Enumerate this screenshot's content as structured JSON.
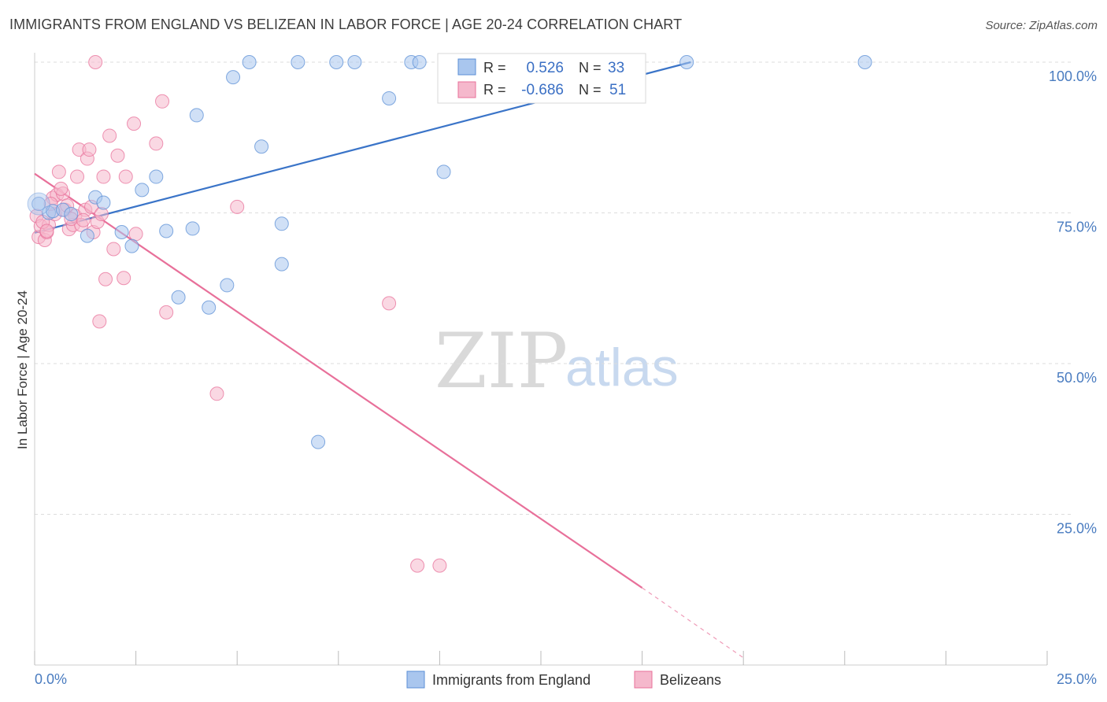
{
  "title": "IMMIGRANTS FROM ENGLAND VS BELIZEAN IN LABOR FORCE | AGE 20-24 CORRELATION CHART",
  "source": "Source: ZipAtlas.com",
  "watermark": {
    "part1": "ZIP",
    "part2": "atlas"
  },
  "colors": {
    "blue": "#5b8fd6",
    "blue_fill": "#a9c6ee",
    "pink": "#e8709a",
    "pink_fill": "#f5b8cc",
    "tick_text": "#4a7cc0",
    "grid": "#dddddd"
  },
  "legend_top": {
    "rows": [
      {
        "r_label": "R =",
        "r_value": "0.526",
        "n_label": "N =",
        "n_value": "33"
      },
      {
        "r_label": "R =",
        "r_value": "-0.686",
        "n_label": "N =",
        "n_value": "51"
      }
    ]
  },
  "legend_bottom": {
    "items": [
      "Immigrants from England",
      "Belizeans"
    ]
  },
  "chart_data": {
    "type": "scatter",
    "xlabel": "",
    "ylabel": "In Labor Force | Age 20-24",
    "xlim": [
      0,
      25
    ],
    "ylim": [
      0,
      105
    ],
    "x_tick_labels": [
      "0.0%",
      "25.0%"
    ],
    "y_tick_labels": [
      "100.0%",
      "75.0%",
      "50.0%",
      "25.0%"
    ],
    "y_ticks": [
      100,
      75,
      50,
      25
    ],
    "grid": true,
    "legend_placement": "bottom",
    "series": [
      {
        "name": "Immigrants from England",
        "R": 0.526,
        "N": 33,
        "trend": {
          "x": [
            0,
            16.2
          ],
          "y": [
            71.7,
            100.0
          ]
        },
        "points": [
          [
            0.1,
            76.5
          ],
          [
            0.35,
            75.0
          ],
          [
            0.45,
            75.3
          ],
          [
            0.7,
            75.5
          ],
          [
            0.9,
            74.8
          ],
          [
            1.3,
            71.2
          ],
          [
            1.5,
            77.6
          ],
          [
            1.7,
            76.7
          ],
          [
            2.15,
            71.8
          ],
          [
            2.4,
            69.5
          ],
          [
            2.65,
            78.8
          ],
          [
            3.0,
            81.0
          ],
          [
            3.25,
            72.0
          ],
          [
            3.55,
            61.0
          ],
          [
            3.9,
            72.4
          ],
          [
            4.0,
            91.2
          ],
          [
            4.3,
            59.3
          ],
          [
            4.75,
            63.0
          ],
          [
            4.9,
            97.5
          ],
          [
            5.3,
            100.0
          ],
          [
            5.6,
            86.0
          ],
          [
            6.1,
            66.5
          ],
          [
            6.1,
            73.2
          ],
          [
            6.5,
            100.0
          ],
          [
            7.0,
            37.0
          ],
          [
            7.45,
            100.0
          ],
          [
            7.9,
            100.0
          ],
          [
            8.75,
            94.0
          ],
          [
            9.3,
            100.0
          ],
          [
            9.5,
            100.0
          ],
          [
            10.1,
            81.8
          ],
          [
            16.1,
            100.0
          ],
          [
            20.5,
            100.0
          ]
        ]
      },
      {
        "name": "Belizeans",
        "R": -0.686,
        "N": 51,
        "trend": {
          "x": [
            0,
            15.0
          ],
          "y": [
            81.5,
            12.8
          ]
        },
        "trend_dashed": {
          "x": [
            15.0,
            17.5
          ],
          "y": [
            12.8,
            1.2
          ]
        },
        "points": [
          [
            0.05,
            74.5
          ],
          [
            0.1,
            71.0
          ],
          [
            0.15,
            72.8
          ],
          [
            0.25,
            70.5
          ],
          [
            0.3,
            71.8
          ],
          [
            0.35,
            73.0
          ],
          [
            0.45,
            77.5
          ],
          [
            0.5,
            74.8
          ],
          [
            0.55,
            78.0
          ],
          [
            0.6,
            81.8
          ],
          [
            0.7,
            78.2
          ],
          [
            0.75,
            75.5
          ],
          [
            0.85,
            72.3
          ],
          [
            0.95,
            73.0
          ],
          [
            1.0,
            74.5
          ],
          [
            1.05,
            81.0
          ],
          [
            1.1,
            85.5
          ],
          [
            1.15,
            73.0
          ],
          [
            1.25,
            75.5
          ],
          [
            1.3,
            84.0
          ],
          [
            1.35,
            85.5
          ],
          [
            1.4,
            76.0
          ],
          [
            1.45,
            71.8
          ],
          [
            1.5,
            100.0
          ],
          [
            1.55,
            73.5
          ],
          [
            1.6,
            57.0
          ],
          [
            1.65,
            74.8
          ],
          [
            1.7,
            81.0
          ],
          [
            1.75,
            64.0
          ],
          [
            1.85,
            87.8
          ],
          [
            1.95,
            69.0
          ],
          [
            2.05,
            84.5
          ],
          [
            2.2,
            64.2
          ],
          [
            2.25,
            81.0
          ],
          [
            2.45,
            89.8
          ],
          [
            2.5,
            71.5
          ],
          [
            3.0,
            86.5
          ],
          [
            3.15,
            93.5
          ],
          [
            3.25,
            58.5
          ],
          [
            4.5,
            45.0
          ],
          [
            5.0,
            76.0
          ],
          [
            8.75,
            60.0
          ],
          [
            9.45,
            16.5
          ],
          [
            10.0,
            16.5
          ],
          [
            0.2,
            73.5
          ],
          [
            0.4,
            76.5
          ],
          [
            0.65,
            79.0
          ],
          [
            0.8,
            76.2
          ],
          [
            0.9,
            74.0
          ],
          [
            1.2,
            73.8
          ],
          [
            0.3,
            72.0
          ]
        ]
      }
    ]
  }
}
